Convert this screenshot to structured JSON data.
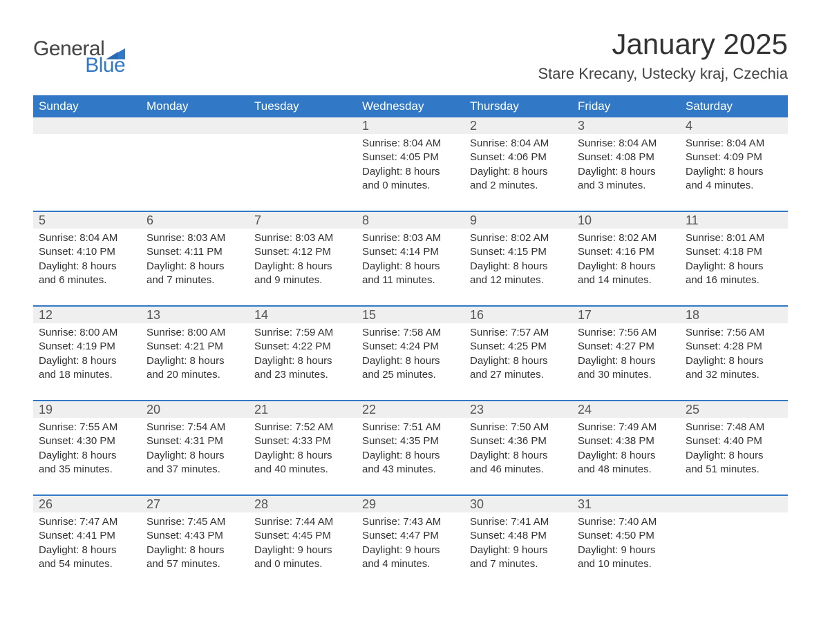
{
  "colors": {
    "blue": "#3178c6",
    "header_row_bg": "#efefef",
    "text": "#333333",
    "background": "#ffffff"
  },
  "logo": {
    "word1": "General",
    "word2": "Blue"
  },
  "title": "January 2025",
  "location": "Stare Krecany, Ustecky kraj, Czechia",
  "weekdays": [
    "Sunday",
    "Monday",
    "Tuesday",
    "Wednesday",
    "Thursday",
    "Friday",
    "Saturday"
  ],
  "weeks": [
    [
      null,
      null,
      null,
      {
        "n": "1",
        "sunrise": "Sunrise: 8:04 AM",
        "sunset": "Sunset: 4:05 PM",
        "daylight": "Daylight: 8 hours and 0 minutes."
      },
      {
        "n": "2",
        "sunrise": "Sunrise: 8:04 AM",
        "sunset": "Sunset: 4:06 PM",
        "daylight": "Daylight: 8 hours and 2 minutes."
      },
      {
        "n": "3",
        "sunrise": "Sunrise: 8:04 AM",
        "sunset": "Sunset: 4:08 PM",
        "daylight": "Daylight: 8 hours and 3 minutes."
      },
      {
        "n": "4",
        "sunrise": "Sunrise: 8:04 AM",
        "sunset": "Sunset: 4:09 PM",
        "daylight": "Daylight: 8 hours and 4 minutes."
      }
    ],
    [
      {
        "n": "5",
        "sunrise": "Sunrise: 8:04 AM",
        "sunset": "Sunset: 4:10 PM",
        "daylight": "Daylight: 8 hours and 6 minutes."
      },
      {
        "n": "6",
        "sunrise": "Sunrise: 8:03 AM",
        "sunset": "Sunset: 4:11 PM",
        "daylight": "Daylight: 8 hours and 7 minutes."
      },
      {
        "n": "7",
        "sunrise": "Sunrise: 8:03 AM",
        "sunset": "Sunset: 4:12 PM",
        "daylight": "Daylight: 8 hours and 9 minutes."
      },
      {
        "n": "8",
        "sunrise": "Sunrise: 8:03 AM",
        "sunset": "Sunset: 4:14 PM",
        "daylight": "Daylight: 8 hours and 11 minutes."
      },
      {
        "n": "9",
        "sunrise": "Sunrise: 8:02 AM",
        "sunset": "Sunset: 4:15 PM",
        "daylight": "Daylight: 8 hours and 12 minutes."
      },
      {
        "n": "10",
        "sunrise": "Sunrise: 8:02 AM",
        "sunset": "Sunset: 4:16 PM",
        "daylight": "Daylight: 8 hours and 14 minutes."
      },
      {
        "n": "11",
        "sunrise": "Sunrise: 8:01 AM",
        "sunset": "Sunset: 4:18 PM",
        "daylight": "Daylight: 8 hours and 16 minutes."
      }
    ],
    [
      {
        "n": "12",
        "sunrise": "Sunrise: 8:00 AM",
        "sunset": "Sunset: 4:19 PM",
        "daylight": "Daylight: 8 hours and 18 minutes."
      },
      {
        "n": "13",
        "sunrise": "Sunrise: 8:00 AM",
        "sunset": "Sunset: 4:21 PM",
        "daylight": "Daylight: 8 hours and 20 minutes."
      },
      {
        "n": "14",
        "sunrise": "Sunrise: 7:59 AM",
        "sunset": "Sunset: 4:22 PM",
        "daylight": "Daylight: 8 hours and 23 minutes."
      },
      {
        "n": "15",
        "sunrise": "Sunrise: 7:58 AM",
        "sunset": "Sunset: 4:24 PM",
        "daylight": "Daylight: 8 hours and 25 minutes."
      },
      {
        "n": "16",
        "sunrise": "Sunrise: 7:57 AM",
        "sunset": "Sunset: 4:25 PM",
        "daylight": "Daylight: 8 hours and 27 minutes."
      },
      {
        "n": "17",
        "sunrise": "Sunrise: 7:56 AM",
        "sunset": "Sunset: 4:27 PM",
        "daylight": "Daylight: 8 hours and 30 minutes."
      },
      {
        "n": "18",
        "sunrise": "Sunrise: 7:56 AM",
        "sunset": "Sunset: 4:28 PM",
        "daylight": "Daylight: 8 hours and 32 minutes."
      }
    ],
    [
      {
        "n": "19",
        "sunrise": "Sunrise: 7:55 AM",
        "sunset": "Sunset: 4:30 PM",
        "daylight": "Daylight: 8 hours and 35 minutes."
      },
      {
        "n": "20",
        "sunrise": "Sunrise: 7:54 AM",
        "sunset": "Sunset: 4:31 PM",
        "daylight": "Daylight: 8 hours and 37 minutes."
      },
      {
        "n": "21",
        "sunrise": "Sunrise: 7:52 AM",
        "sunset": "Sunset: 4:33 PM",
        "daylight": "Daylight: 8 hours and 40 minutes."
      },
      {
        "n": "22",
        "sunrise": "Sunrise: 7:51 AM",
        "sunset": "Sunset: 4:35 PM",
        "daylight": "Daylight: 8 hours and 43 minutes."
      },
      {
        "n": "23",
        "sunrise": "Sunrise: 7:50 AM",
        "sunset": "Sunset: 4:36 PM",
        "daylight": "Daylight: 8 hours and 46 minutes."
      },
      {
        "n": "24",
        "sunrise": "Sunrise: 7:49 AM",
        "sunset": "Sunset: 4:38 PM",
        "daylight": "Daylight: 8 hours and 48 minutes."
      },
      {
        "n": "25",
        "sunrise": "Sunrise: 7:48 AM",
        "sunset": "Sunset: 4:40 PM",
        "daylight": "Daylight: 8 hours and 51 minutes."
      }
    ],
    [
      {
        "n": "26",
        "sunrise": "Sunrise: 7:47 AM",
        "sunset": "Sunset: 4:41 PM",
        "daylight": "Daylight: 8 hours and 54 minutes."
      },
      {
        "n": "27",
        "sunrise": "Sunrise: 7:45 AM",
        "sunset": "Sunset: 4:43 PM",
        "daylight": "Daylight: 8 hours and 57 minutes."
      },
      {
        "n": "28",
        "sunrise": "Sunrise: 7:44 AM",
        "sunset": "Sunset: 4:45 PM",
        "daylight": "Daylight: 9 hours and 0 minutes."
      },
      {
        "n": "29",
        "sunrise": "Sunrise: 7:43 AM",
        "sunset": "Sunset: 4:47 PM",
        "daylight": "Daylight: 9 hours and 4 minutes."
      },
      {
        "n": "30",
        "sunrise": "Sunrise: 7:41 AM",
        "sunset": "Sunset: 4:48 PM",
        "daylight": "Daylight: 9 hours and 7 minutes."
      },
      {
        "n": "31",
        "sunrise": "Sunrise: 7:40 AM",
        "sunset": "Sunset: 4:50 PM",
        "daylight": "Daylight: 9 hours and 10 minutes."
      },
      null
    ]
  ]
}
